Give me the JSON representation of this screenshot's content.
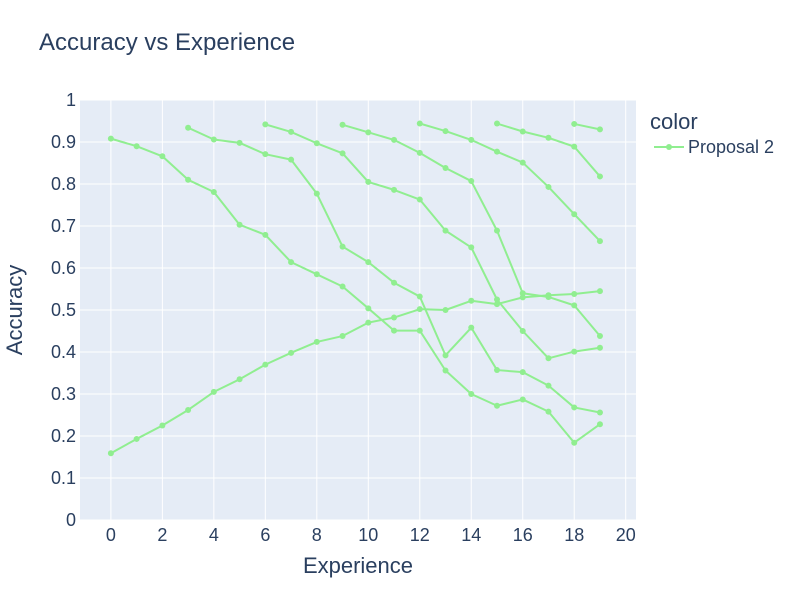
{
  "chart_data": {
    "type": "line",
    "title": "Accuracy vs Experience",
    "xlabel": "Experience",
    "ylabel": "Accuracy",
    "xlim": [
      -1.2,
      20.4
    ],
    "ylim": [
      0,
      1
    ],
    "xticks": [
      0,
      2,
      4,
      6,
      8,
      10,
      12,
      14,
      16,
      18,
      20
    ],
    "yticks": [
      0,
      0.1,
      0.2,
      0.3,
      0.4,
      0.5,
      0.6,
      0.7,
      0.8,
      0.9,
      1
    ],
    "grid": true,
    "legend": {
      "title": "color",
      "position": "top-right",
      "entries": [
        "Proposal 2"
      ]
    },
    "colors": {
      "series": "#90ee90",
      "plot_bg": "#e5ecf6",
      "grid": "#ffffff",
      "text": "#2a3f5f"
    },
    "series": [
      {
        "name": "Proposal 2",
        "points": [
          [
            0,
            0.908
          ],
          [
            1,
            0.89
          ],
          [
            2,
            0.866
          ],
          [
            3,
            0.81
          ],
          [
            4,
            0.781
          ],
          [
            5,
            0.703
          ],
          [
            6,
            0.679
          ],
          [
            7,
            0.614
          ],
          [
            8,
            0.585
          ],
          [
            9,
            0.556
          ],
          [
            10,
            0.504
          ],
          [
            11,
            0.451
          ],
          [
            12,
            0.451
          ],
          [
            13,
            0.356
          ],
          [
            14,
            0.3
          ],
          [
            15,
            0.272
          ],
          [
            16,
            0.287
          ],
          [
            17,
            0.258
          ],
          [
            18,
            0.184
          ],
          [
            19,
            0.228
          ]
        ]
      },
      {
        "name": "Proposal 2",
        "points": [
          [
            0,
            0.159
          ],
          [
            1,
            0.193
          ],
          [
            2,
            0.225
          ],
          [
            3,
            0.262
          ],
          [
            4,
            0.305
          ],
          [
            5,
            0.335
          ],
          [
            6,
            0.37
          ],
          [
            7,
            0.398
          ],
          [
            8,
            0.424
          ],
          [
            9,
            0.438
          ],
          [
            10,
            0.47
          ],
          [
            11,
            0.482
          ],
          [
            12,
            0.502
          ],
          [
            13,
            0.5
          ],
          [
            14,
            0.522
          ],
          [
            15,
            0.514
          ],
          [
            16,
            0.53
          ],
          [
            17,
            0.535
          ],
          [
            18,
            0.538
          ],
          [
            19,
            0.545
          ]
        ]
      },
      {
        "name": "Proposal 2",
        "points": [
          [
            3,
            0.934
          ],
          [
            4,
            0.906
          ],
          [
            5,
            0.898
          ],
          [
            6,
            0.871
          ],
          [
            7,
            0.858
          ],
          [
            8,
            0.777
          ],
          [
            9,
            0.651
          ],
          [
            10,
            0.614
          ],
          [
            11,
            0.565
          ],
          [
            12,
            0.532
          ],
          [
            13,
            0.392
          ],
          [
            14,
            0.458
          ],
          [
            15,
            0.357
          ],
          [
            16,
            0.352
          ],
          [
            17,
            0.32
          ],
          [
            18,
            0.268
          ],
          [
            19,
            0.256
          ]
        ]
      },
      {
        "name": "Proposal 2",
        "points": [
          [
            6,
            0.942
          ],
          [
            7,
            0.924
          ],
          [
            8,
            0.897
          ],
          [
            9,
            0.873
          ],
          [
            10,
            0.805
          ],
          [
            11,
            0.786
          ],
          [
            12,
            0.763
          ],
          [
            13,
            0.689
          ],
          [
            14,
            0.649
          ],
          [
            15,
            0.525
          ],
          [
            16,
            0.45
          ],
          [
            17,
            0.385
          ],
          [
            18,
            0.401
          ],
          [
            19,
            0.41
          ]
        ]
      },
      {
        "name": "Proposal 2",
        "points": [
          [
            9,
            0.941
          ],
          [
            10,
            0.923
          ],
          [
            11,
            0.905
          ],
          [
            12,
            0.874
          ],
          [
            13,
            0.838
          ],
          [
            14,
            0.807
          ],
          [
            15,
            0.689
          ],
          [
            16,
            0.54
          ],
          [
            17,
            0.531
          ],
          [
            18,
            0.511
          ],
          [
            19,
            0.438
          ]
        ]
      },
      {
        "name": "Proposal 2",
        "points": [
          [
            12,
            0.944
          ],
          [
            13,
            0.926
          ],
          [
            14,
            0.905
          ],
          [
            15,
            0.877
          ],
          [
            16,
            0.851
          ],
          [
            17,
            0.793
          ],
          [
            18,
            0.728
          ],
          [
            19,
            0.664
          ]
        ]
      },
      {
        "name": "Proposal 2",
        "points": [
          [
            15,
            0.944
          ],
          [
            16,
            0.925
          ],
          [
            17,
            0.91
          ],
          [
            18,
            0.889
          ],
          [
            19,
            0.818
          ]
        ]
      },
      {
        "name": "Proposal 2",
        "points": [
          [
            18,
            0.943
          ],
          [
            19,
            0.93
          ]
        ]
      }
    ]
  }
}
